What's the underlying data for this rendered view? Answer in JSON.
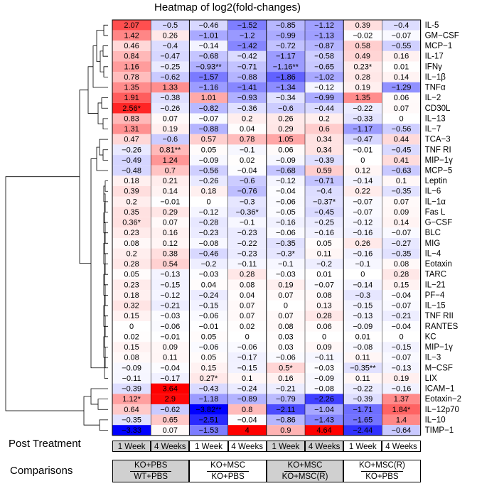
{
  "title": "Heatmap of log2(fold-changes)",
  "post_treatment_label": "Post Treatment",
  "comparisons_label": "Comparisons",
  "colors": {
    "low": "#0000ff",
    "mid": "#ffffff",
    "high": "#ff0000",
    "grey_box": "#d0d0d0"
  },
  "post_treatment": [
    {
      "label": "1 Week",
      "shaded": true
    },
    {
      "label": "4 Weeks",
      "shaded": true
    },
    {
      "label": "1 Week",
      "shaded": false
    },
    {
      "label": "4 Weeks",
      "shaded": false
    },
    {
      "label": "1 Week",
      "shaded": true
    },
    {
      "label": "4 Weeks",
      "shaded": true
    },
    {
      "label": "1 Week",
      "shaded": false
    },
    {
      "label": "4 Weeks",
      "shaded": false
    }
  ],
  "comparisons": [
    {
      "numerator": "KO+PBS",
      "denominator": "WT+PBS",
      "shaded": true
    },
    {
      "numerator": "KO+MSC",
      "denominator": "KO+PBS",
      "shaded": false
    },
    {
      "numerator": "KO+MSC",
      "denominator": "KO+MSC(R)",
      "shaded": true
    },
    {
      "numerator": "KO+MSC(R)",
      "denominator": "KO+PBS",
      "shaded": false
    }
  ],
  "chart_data": {
    "type": "heatmap",
    "title": "Heatmap of log2(fold-changes)",
    "color_range": [
      -3,
      3
    ],
    "columns": [
      "KO+PBS/WT+PBS 1 Week",
      "KO+PBS/WT+PBS 4 Weeks",
      "KO+MSC/KO+PBS 1 Week",
      "KO+MSC/KO+PBS 4 Weeks",
      "KO+MSC/KO+MSC(R) 1 Week",
      "KO+MSC/KO+MSC(R) 4 Weeks",
      "KO+MSC(R)/KO+PBS 1 Week",
      "KO+MSC(R)/KO+PBS 4 Weeks"
    ],
    "rows": [
      {
        "name": "IL-5",
        "values": [
          2.07,
          -0.5,
          -0.46,
          -1.52,
          -0.85,
          -1.12,
          0.39,
          -0.4
        ],
        "labels": [
          "2.07",
          "−0.5",
          "−0.46",
          "−1.52",
          "−0.85",
          "−1.12",
          "0.39",
          "−0.4"
        ]
      },
      {
        "name": "GM−CSF",
        "values": [
          1.42,
          0.26,
          -1.01,
          -1.2,
          -0.99,
          -1.13,
          -0.02,
          -0.07
        ],
        "labels": [
          "1.42",
          "0.26",
          "−1.01",
          "−1.2",
          "−0.99",
          "−1.13",
          "−0.02",
          "−0.07"
        ]
      },
      {
        "name": "MCP−1",
        "values": [
          0.46,
          -0.4,
          -0.14,
          -1.42,
          -0.72,
          -0.87,
          0.58,
          -0.55
        ],
        "labels": [
          "0.46",
          "−0.4",
          "−0.14",
          "−1.42",
          "−0.72",
          "−0.87",
          "0.58",
          "−0.55"
        ]
      },
      {
        "name": "IL-17",
        "values": [
          0.84,
          -0.47,
          -0.68,
          -0.42,
          -1.17,
          -0.58,
          0.49,
          0.16
        ],
        "labels": [
          "0.84",
          "−0.47",
          "−0.68",
          "−0.42",
          "−1.17",
          "−0.58",
          "0.49",
          "0.16"
        ]
      },
      {
        "name": "IFNγ",
        "values": [
          1.16,
          -0.25,
          -0.93,
          -0.71,
          -1.16,
          -0.65,
          0.23,
          0.01
        ],
        "labels": [
          "1.16",
          "−0.25",
          "−0.93**",
          "−0.71",
          "−1.16**",
          "−0.65",
          "0.23*",
          "0.01"
        ]
      },
      {
        "name": "IL−1β",
        "values": [
          0.78,
          -0.62,
          -1.57,
          -0.88,
          -1.86,
          -1.02,
          0.28,
          0.14
        ],
        "labels": [
          "0.78",
          "−0.62",
          "−1.57",
          "−0.88",
          "−1.86",
          "−1.02",
          "0.28",
          "0.14"
        ]
      },
      {
        "name": "TNFα",
        "values": [
          1.35,
          1.33,
          -1.16,
          -1.41,
          -1.34,
          -0.12,
          0.19,
          -1.29
        ],
        "labels": [
          "1.35",
          "1.33",
          "−1.16",
          "−1.41",
          "−1.34",
          "−0.12",
          "0.19",
          "−1.29"
        ]
      },
      {
        "name": "IL−2",
        "values": [
          1.91,
          -0.38,
          1.01,
          -0.93,
          -0.34,
          -0.99,
          1.35,
          0.06
        ],
        "labels": [
          "1.91",
          "−0.38",
          "1.01",
          "−0.93",
          "−0.34",
          "−0.99",
          "1.35",
          "0.06"
        ]
      },
      {
        "name": "CD30L",
        "values": [
          2.56,
          -0.26,
          -0.82,
          -0.36,
          -0.6,
          -0.44,
          -0.22,
          0.07
        ],
        "labels": [
          "2.56*",
          "−0.26",
          "−0.82",
          "−0.36",
          "−0.6",
          "−0.44",
          "−0.22",
          "0.07"
        ]
      },
      {
        "name": "IL−13",
        "values": [
          0.83,
          0.07,
          -0.07,
          0.2,
          0.26,
          0.2,
          -0.33,
          0
        ],
        "labels": [
          "0.83",
          "0.07",
          "−0.07",
          "0.2",
          "0.26",
          "0.2",
          "−0.33",
          "0"
        ]
      },
      {
        "name": "IL−7",
        "values": [
          1.31,
          0.19,
          -0.88,
          0.04,
          0.29,
          0.6,
          -1.17,
          -0.56
        ],
        "labels": [
          "1.31",
          "0.19",
          "−0.88",
          "0.04",
          "0.29",
          "0.6",
          "−1.17",
          "−0.56"
        ]
      },
      {
        "name": "TCA−3",
        "values": [
          0.47,
          -0.6,
          0.57,
          0.78,
          1.05,
          0.34,
          -0.47,
          0.44
        ],
        "labels": [
          "0.47",
          "−0.6",
          "0.57",
          "0.78",
          "1.05",
          "0.34",
          "−0.47",
          "0.44"
        ]
      },
      {
        "name": "TNF RI",
        "values": [
          -0.26,
          0.81,
          0.05,
          -0.1,
          0.06,
          0.34,
          -0.01,
          -0.45
        ],
        "labels": [
          "−0.26",
          "0.81**",
          "0.05",
          "−0.1",
          "0.06",
          "0.34",
          "−0.01",
          "−0.45"
        ]
      },
      {
        "name": "MIP−1γ",
        "values": [
          -0.49,
          1.24,
          -0.09,
          0.02,
          -0.09,
          -0.39,
          0,
          0.41
        ],
        "labels": [
          "−0.49",
          "1.24",
          "−0.09",
          "0.02",
          "−0.09",
          "−0.39",
          "0",
          "0.41"
        ]
      },
      {
        "name": "MCP−5",
        "values": [
          -0.48,
          0.7,
          -0.56,
          -0.04,
          -0.68,
          0.59,
          0.12,
          -0.63
        ],
        "labels": [
          "−0.48",
          "0.7",
          "−0.56",
          "−0.04",
          "−0.68",
          "0.59",
          "0.12",
          "−0.63"
        ]
      },
      {
        "name": "Leptin",
        "values": [
          0.18,
          0.21,
          -0.26,
          -0.6,
          -0.12,
          -0.71,
          -0.14,
          0.1
        ],
        "labels": [
          "0.18",
          "0.21",
          "−0.26",
          "−0.6",
          "−0.12",
          "−0.71",
          "−0.14",
          "0.1"
        ]
      },
      {
        "name": "IL−6",
        "values": [
          0.39,
          0.14,
          0.18,
          -0.76,
          -0.04,
          -0.4,
          0.22,
          -0.35
        ],
        "labels": [
          "0.39",
          "0.14",
          "0.18",
          "−0.76",
          "−0.04",
          "−0.4",
          "0.22",
          "−0.35"
        ]
      },
      {
        "name": "IL−1α",
        "values": [
          0.2,
          -0.01,
          0,
          -0.3,
          -0.06,
          -0.37,
          -0.07,
          0.07
        ],
        "labels": [
          "0.2",
          "−0.01",
          "0",
          "−0.3",
          "−0.06",
          "−0.37*",
          "−0.07",
          "0.07"
        ]
      },
      {
        "name": "Fas L",
        "values": [
          0.35,
          0.29,
          -0.12,
          -0.36,
          -0.05,
          -0.45,
          -0.07,
          0.09
        ],
        "labels": [
          "0.35",
          "0.29",
          "−0.12",
          "−0.36*",
          "−0.05",
          "−0.45",
          "−0.07",
          "0.09"
        ]
      },
      {
        "name": "G−CSF",
        "values": [
          0.36,
          0.07,
          -0.28,
          -0.1,
          -0.16,
          -0.25,
          -0.12,
          0.14
        ],
        "labels": [
          "0.36*",
          "0.07",
          "−0.28",
          "−0.1",
          "−0.16",
          "−0.25",
          "−0.12",
          "0.14"
        ]
      },
      {
        "name": "BLC",
        "values": [
          0.23,
          0.16,
          -0.23,
          -0.23,
          -0.06,
          -0.16,
          -0.16,
          -0.07
        ],
        "labels": [
          "0.23",
          "0.16",
          "−0.23",
          "−0.23",
          "−0.06",
          "−0.16",
          "−0.16",
          "−0.07"
        ]
      },
      {
        "name": "MIG",
        "values": [
          0.08,
          0.12,
          -0.08,
          -0.22,
          -0.35,
          0.05,
          0.26,
          -0.27
        ],
        "labels": [
          "0.08",
          "0.12",
          "−0.08",
          "−0.22",
          "−0.35",
          "0.05",
          "0.26",
          "−0.27"
        ]
      },
      {
        "name": "IL−4",
        "values": [
          0.2,
          0.38,
          -0.46,
          -0.23,
          -0.3,
          0.11,
          -0.16,
          -0.35
        ],
        "labels": [
          "0.2",
          "0.38",
          "−0.46",
          "−0.23",
          "−0.3*",
          "0.11",
          "−0.16",
          "−0.35"
        ]
      },
      {
        "name": "Eotaxin",
        "values": [
          0.28,
          0.54,
          -0.2,
          -0.11,
          -0.1,
          -0.2,
          -0.1,
          0.08
        ],
        "labels": [
          "0.28",
          "0.54",
          "−0.2",
          "−0.11",
          "−0.1",
          "−0.2",
          "−0.1",
          "0.08"
        ]
      },
      {
        "name": "TARC",
        "values": [
          0.05,
          -0.13,
          -0.03,
          0.28,
          -0.03,
          0.01,
          0,
          0.28
        ],
        "labels": [
          "0.05",
          "−0.13",
          "−0.03",
          "0.28",
          "−0.03",
          "0.01",
          "0",
          "0.28"
        ]
      },
      {
        "name": "IL−21",
        "values": [
          0.23,
          -0.15,
          0.04,
          0.08,
          0.19,
          -0.07,
          -0.14,
          0.15
        ],
        "labels": [
          "0.23",
          "−0.15",
          "0.04",
          "0.08",
          "0.19",
          "−0.07",
          "−0.14",
          "0.15"
        ]
      },
      {
        "name": "PF−4",
        "values": [
          0.18,
          -0.12,
          -0.24,
          0.04,
          0.07,
          0.08,
          -0.3,
          -0.04
        ],
        "labels": [
          "0.18",
          "−0.12",
          "−0.24",
          "0.04",
          "0.07",
          "0.08",
          "−0.3",
          "−0.04"
        ]
      },
      {
        "name": "IL−15",
        "values": [
          0.32,
          -0.21,
          -0.15,
          0.07,
          0,
          0.13,
          -0.15,
          -0.07
        ],
        "labels": [
          "0.32",
          "−0.21",
          "−0.15",
          "0.07",
          "0",
          "0.13",
          "−0.15",
          "−0.07"
        ]
      },
      {
        "name": "TNF RII",
        "values": [
          0.15,
          -0.03,
          -0.06,
          0.07,
          0.07,
          0.28,
          -0.13,
          -0.21
        ],
        "labels": [
          "0.15",
          "−0.03",
          "−0.06",
          "0.07",
          "0.07",
          "0.28",
          "−0.13",
          "−0.21"
        ]
      },
      {
        "name": "RANTES",
        "values": [
          0,
          -0.06,
          -0.01,
          0.02,
          0.08,
          0.06,
          -0.09,
          -0.04
        ],
        "labels": [
          "0",
          "−0.06",
          "−0.01",
          "0.02",
          "0.08",
          "0.06",
          "−0.09",
          "−0.04"
        ]
      },
      {
        "name": "KC",
        "values": [
          0.02,
          -0.01,
          0.05,
          0,
          0.03,
          0,
          0.01,
          0
        ],
        "labels": [
          "0.02",
          "−0.01",
          "0.05",
          "0",
          "0.03",
          "0",
          "0.01",
          "0"
        ]
      },
      {
        "name": "MIP−1γ",
        "values": [
          0.15,
          0.09,
          -0.06,
          -0.06,
          0.03,
          0.09,
          -0.08,
          -0.15
        ],
        "labels": [
          "0.15",
          "0.09",
          "−0.06",
          "−0.06",
          "0.03",
          "0.09",
          "−0.08",
          "−0.15"
        ]
      },
      {
        "name": "IL−3",
        "values": [
          0.08,
          0.11,
          0.05,
          -0.17,
          -0.06,
          -0.11,
          0.11,
          -0.07
        ],
        "labels": [
          "0.08",
          "0.11",
          "0.05",
          "−0.17",
          "−0.06",
          "−0.11",
          "0.11",
          "−0.07"
        ]
      },
      {
        "name": "M−CSF",
        "values": [
          -0.09,
          -0.04,
          0.15,
          -0.15,
          0.5,
          -0.03,
          -0.35,
          -0.13
        ],
        "labels": [
          "−0.09",
          "−0.04",
          "0.15",
          "−0.15",
          "0.5*",
          "−0.03",
          "−0.35**",
          "−0.13"
        ]
      },
      {
        "name": "LIX",
        "values": [
          -0.11,
          -0.17,
          0.27,
          0.1,
          0.16,
          -0.09,
          0.11,
          0.19
        ],
        "labels": [
          "−0.11",
          "−0.17",
          "0.27*",
          "0.1",
          "0.16",
          "−0.09",
          "0.11",
          "0.19"
        ]
      },
      {
        "name": "ICAM−1",
        "values": [
          -0.39,
          3.64,
          -0.43,
          -0.24,
          -0.21,
          -0.08,
          -0.22,
          -0.16
        ],
        "labels": [
          "−0.39",
          "3.64",
          "−0.43",
          "−0.24",
          "−0.21",
          "−0.08",
          "−0.22",
          "−0.16"
        ]
      },
      {
        "name": "Eotaxin−2",
        "values": [
          1.12,
          2.9,
          -1.18,
          -0.89,
          -0.79,
          -2.26,
          -0.39,
          1.37
        ],
        "labels": [
          "1.12*",
          "2.9",
          "−1.18",
          "−0.89",
          "−0.79",
          "−2.26",
          "−0.39",
          "1.37"
        ]
      },
      {
        "name": "IL−12p70",
        "values": [
          0.64,
          -0.62,
          -3.82,
          0.8,
          -2.11,
          -1.04,
          -1.71,
          1.84
        ],
        "labels": [
          "0.64",
          "−0.62",
          "−3.82**",
          "0.8",
          "−2.11",
          "−1.04",
          "−1.71",
          "1.84*"
        ]
      },
      {
        "name": "IL−10",
        "values": [
          -0.35,
          0.65,
          -2.51,
          -0.04,
          -0.86,
          -1.43,
          -1.65,
          1.4
        ],
        "labels": [
          "−0.35",
          "0.65",
          "−2.51",
          "−0.04",
          "−0.86",
          "−1.43",
          "−1.65",
          "1.4"
        ]
      },
      {
        "name": "TIMP−1",
        "values": [
          -3.33,
          0.07,
          -1.53,
          4,
          0.9,
          4.64,
          -2.44,
          -0.64
        ],
        "labels": [
          "−3.33",
          "0.07",
          "−1.53",
          "4",
          "0.9",
          "4.64",
          "−2.44",
          "−0.64"
        ]
      }
    ]
  }
}
